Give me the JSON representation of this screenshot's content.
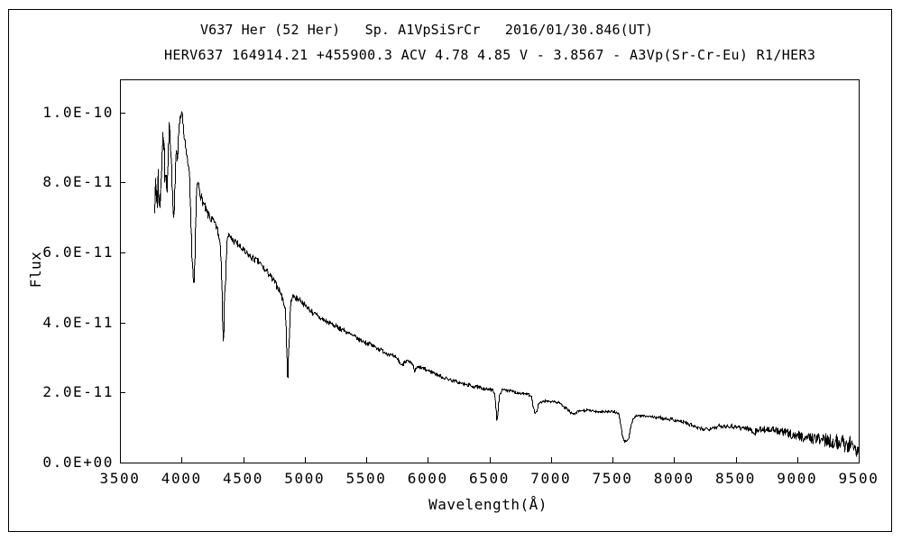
{
  "frame": {
    "background": "#ffffff",
    "border_color": "#000000",
    "line_color": "#000000"
  },
  "chart_data": {
    "type": "line",
    "title_line1": "V637 Her (52 Her)   Sp. A1VpSiSrCr   2016/01/30.846(UT)",
    "title_line2": "HERV637 164914.21 +455900.3 ACV 4.78 4.85 V - 3.8567 - A3Vp(Sr-Cr-Eu) R1/HER3",
    "xlabel": "Wavelength(Å)",
    "ylabel": "Flux",
    "xlim": [
      3500,
      9500
    ],
    "x_ticks": [
      3500,
      4000,
      4500,
      5000,
      5500,
      6000,
      6500,
      7000,
      7500,
      8000,
      8500,
      9000,
      9500
    ],
    "x_tick_labels": [
      "3500",
      "4000",
      "4500",
      "5000",
      "5500",
      "6000",
      "6500",
      "7000",
      "7500",
      "8000",
      "8500",
      "9000",
      "9500"
    ],
    "ylim_1e11": [
      0,
      10.95
    ],
    "flux_unit_scale": 1e-11,
    "y_ticks_1e11": [
      0,
      2,
      4,
      6,
      8,
      10
    ],
    "y_tick_labels": [
      "0.0E+00",
      "2.0E-11",
      "4.0E-11",
      "6.0E-11",
      "8.0E-11",
      "1.0E-10"
    ],
    "grid": false,
    "legend": false,
    "line_color": "#000000",
    "series": [
      {
        "name": "spectrum",
        "x_unit": "angstrom",
        "y_unit": "1e-11",
        "points": [
          [
            3782,
            7.3
          ],
          [
            3786,
            8.3
          ],
          [
            3789,
            7.1
          ],
          [
            3793,
            7.9
          ],
          [
            3797,
            7.2
          ],
          [
            3802,
            7.6
          ],
          [
            3807,
            8.6
          ],
          [
            3811,
            7.5
          ],
          [
            3816,
            7.2
          ],
          [
            3821,
            7.9
          ],
          [
            3826,
            7.4
          ],
          [
            3832,
            8.2
          ],
          [
            3838,
            8.9
          ],
          [
            3843,
            9.3
          ],
          [
            3847,
            9.6
          ],
          [
            3851,
            8.7
          ],
          [
            3855,
            9.5
          ],
          [
            3860,
            8.3
          ],
          [
            3864,
            7.9
          ],
          [
            3869,
            8.4
          ],
          [
            3874,
            8.0
          ],
          [
            3879,
            7.8
          ],
          [
            3885,
            8.5
          ],
          [
            3892,
            9.2
          ],
          [
            3898,
            9.6
          ],
          [
            3903,
            9.4
          ],
          [
            3908,
            9.0
          ],
          [
            3913,
            8.4
          ],
          [
            3919,
            7.8
          ],
          [
            3925,
            7.4
          ],
          [
            3931,
            7.1
          ],
          [
            3937,
            7.2
          ],
          [
            3943,
            7.9
          ],
          [
            3950,
            8.6
          ],
          [
            3956,
            9.0
          ],
          [
            3961,
            8.6
          ],
          [
            3966,
            8.9
          ],
          [
            3972,
            9.3
          ],
          [
            3978,
            9.6
          ],
          [
            3984,
            9.9
          ],
          [
            3990,
            10.05
          ],
          [
            3996,
            9.9
          ],
          [
            4002,
            10.0
          ],
          [
            4008,
            9.7
          ],
          [
            4014,
            9.5
          ],
          [
            4022,
            9.2
          ],
          [
            4030,
            9.0
          ],
          [
            4040,
            8.7
          ],
          [
            4050,
            8.5
          ],
          [
            4058,
            8.3
          ],
          [
            4066,
            7.6
          ],
          [
            4074,
            6.7
          ],
          [
            4082,
            5.9
          ],
          [
            4090,
            5.3
          ],
          [
            4097,
            5.15
          ],
          [
            4104,
            5.6
          ],
          [
            4110,
            6.5
          ],
          [
            4116,
            7.3
          ],
          [
            4122,
            7.9
          ],
          [
            4128,
            8.0
          ],
          [
            4136,
            7.9
          ],
          [
            4145,
            7.75
          ],
          [
            4155,
            7.6
          ],
          [
            4168,
            7.5
          ],
          [
            4180,
            7.35
          ],
          [
            4195,
            7.2
          ],
          [
            4210,
            7.1
          ],
          [
            4225,
            7.0
          ],
          [
            4240,
            6.95
          ],
          [
            4255,
            6.9
          ],
          [
            4270,
            6.8
          ],
          [
            4285,
            6.7
          ],
          [
            4300,
            6.5
          ],
          [
            4312,
            6.2
          ],
          [
            4322,
            5.4
          ],
          [
            4330,
            4.3
          ],
          [
            4336,
            3.45
          ],
          [
            4342,
            3.9
          ],
          [
            4350,
            4.9
          ],
          [
            4358,
            5.8
          ],
          [
            4366,
            6.3
          ],
          [
            4374,
            6.5
          ],
          [
            4382,
            6.5
          ],
          [
            4392,
            6.45
          ],
          [
            4405,
            6.4
          ],
          [
            4420,
            6.35
          ],
          [
            4435,
            6.3
          ],
          [
            4455,
            6.25
          ],
          [
            4475,
            6.15
          ],
          [
            4495,
            6.1
          ],
          [
            4515,
            6.0
          ],
          [
            4535,
            5.95
          ],
          [
            4555,
            5.9
          ],
          [
            4575,
            5.85
          ],
          [
            4595,
            5.8
          ],
          [
            4615,
            5.75
          ],
          [
            4635,
            5.7
          ],
          [
            4655,
            5.6
          ],
          [
            4675,
            5.5
          ],
          [
            4695,
            5.45
          ],
          [
            4715,
            5.35
          ],
          [
            4735,
            5.25
          ],
          [
            4755,
            5.15
          ],
          [
            4775,
            5.05
          ],
          [
            4795,
            4.9
          ],
          [
            4812,
            4.75
          ],
          [
            4827,
            4.6
          ],
          [
            4839,
            4.35
          ],
          [
            4848,
            3.7
          ],
          [
            4855,
            2.8
          ],
          [
            4860,
            2.25
          ],
          [
            4866,
            2.9
          ],
          [
            4873,
            3.9
          ],
          [
            4881,
            4.5
          ],
          [
            4890,
            4.7
          ],
          [
            4905,
            4.75
          ],
          [
            4925,
            4.72
          ],
          [
            4950,
            4.68
          ],
          [
            4975,
            4.6
          ],
          [
            5000,
            4.5
          ],
          [
            5030,
            4.42
          ],
          [
            5060,
            4.3
          ],
          [
            5090,
            4.22
          ],
          [
            5120,
            4.15
          ],
          [
            5150,
            4.08
          ],
          [
            5180,
            4.02
          ],
          [
            5210,
            3.98
          ],
          [
            5240,
            3.92
          ],
          [
            5270,
            3.87
          ],
          [
            5300,
            3.82
          ],
          [
            5335,
            3.75
          ],
          [
            5370,
            3.67
          ],
          [
            5405,
            3.6
          ],
          [
            5440,
            3.53
          ],
          [
            5475,
            3.47
          ],
          [
            5510,
            3.42
          ],
          [
            5545,
            3.36
          ],
          [
            5580,
            3.3
          ],
          [
            5615,
            3.24
          ],
          [
            5650,
            3.17
          ],
          [
            5685,
            3.1
          ],
          [
            5720,
            3.03
          ],
          [
            5750,
            2.98
          ],
          [
            5775,
            2.85
          ],
          [
            5790,
            2.78
          ],
          [
            5808,
            2.92
          ],
          [
            5830,
            2.9
          ],
          [
            5855,
            2.85
          ],
          [
            5875,
            2.78
          ],
          [
            5892,
            2.62
          ],
          [
            5908,
            2.72
          ],
          [
            5930,
            2.73
          ],
          [
            5955,
            2.7
          ],
          [
            5985,
            2.66
          ],
          [
            6015,
            2.62
          ],
          [
            6045,
            2.57
          ],
          [
            6075,
            2.52
          ],
          [
            6105,
            2.47
          ],
          [
            6135,
            2.43
          ],
          [
            6165,
            2.4
          ],
          [
            6195,
            2.36
          ],
          [
            6225,
            2.32
          ],
          [
            6255,
            2.29
          ],
          [
            6285,
            2.26
          ],
          [
            6315,
            2.23
          ],
          [
            6345,
            2.21
          ],
          [
            6375,
            2.18
          ],
          [
            6405,
            2.16
          ],
          [
            6435,
            2.14
          ],
          [
            6465,
            2.12
          ],
          [
            6495,
            2.1
          ],
          [
            6520,
            2.08
          ],
          [
            6540,
            2.0
          ],
          [
            6552,
            1.55
          ],
          [
            6559,
            1.2
          ],
          [
            6567,
            1.55
          ],
          [
            6577,
            1.9
          ],
          [
            6592,
            2.05
          ],
          [
            6612,
            2.1
          ],
          [
            6642,
            2.08
          ],
          [
            6672,
            2.06
          ],
          [
            6702,
            2.03
          ],
          [
            6732,
            2.01
          ],
          [
            6762,
            2.0
          ],
          [
            6792,
            1.98
          ],
          [
            6817,
            1.95
          ],
          [
            6837,
            1.88
          ],
          [
            6853,
            1.62
          ],
          [
            6866,
            1.42
          ],
          [
            6880,
            1.47
          ],
          [
            6894,
            1.63
          ],
          [
            6910,
            1.73
          ],
          [
            6928,
            1.76
          ],
          [
            6955,
            1.77
          ],
          [
            6985,
            1.77
          ],
          [
            7015,
            1.76
          ],
          [
            7045,
            1.74
          ],
          [
            7075,
            1.7
          ],
          [
            7105,
            1.62
          ],
          [
            7135,
            1.52
          ],
          [
            7158,
            1.43
          ],
          [
            7180,
            1.38
          ],
          [
            7203,
            1.43
          ],
          [
            7228,
            1.48
          ],
          [
            7258,
            1.5
          ],
          [
            7290,
            1.5
          ],
          [
            7322,
            1.49
          ],
          [
            7355,
            1.48
          ],
          [
            7390,
            1.47
          ],
          [
            7425,
            1.47
          ],
          [
            7460,
            1.46
          ],
          [
            7495,
            1.46
          ],
          [
            7525,
            1.46
          ],
          [
            7548,
            1.42
          ],
          [
            7563,
            1.12
          ],
          [
            7576,
            0.76
          ],
          [
            7589,
            0.65
          ],
          [
            7601,
            0.62
          ],
          [
            7613,
            0.63
          ],
          [
            7625,
            0.68
          ],
          [
            7637,
            0.86
          ],
          [
            7649,
            1.08
          ],
          [
            7661,
            1.24
          ],
          [
            7674,
            1.31
          ],
          [
            7692,
            1.34
          ],
          [
            7718,
            1.35
          ],
          [
            7748,
            1.34
          ],
          [
            7778,
            1.33
          ],
          [
            7808,
            1.32
          ],
          [
            7838,
            1.31
          ],
          [
            7868,
            1.3
          ],
          [
            7898,
            1.29
          ],
          [
            7928,
            1.27
          ],
          [
            7958,
            1.26
          ],
          [
            7988,
            1.24
          ],
          [
            8018,
            1.22
          ],
          [
            8048,
            1.19
          ],
          [
            8078,
            1.16
          ],
          [
            8108,
            1.12
          ],
          [
            8138,
            1.08
          ],
          [
            8168,
            1.03
          ],
          [
            8198,
            0.98
          ],
          [
            8228,
            0.96
          ],
          [
            8258,
            0.98
          ],
          [
            8288,
            1.0
          ],
          [
            8318,
            1.02
          ],
          [
            8348,
            1.04
          ],
          [
            8378,
            1.05
          ],
          [
            8408,
            1.06
          ],
          [
            8438,
            1.06
          ],
          [
            8468,
            1.05
          ],
          [
            8498,
            1.04
          ],
          [
            8528,
            1.02
          ],
          [
            8558,
            1.0
          ],
          [
            8588,
            0.99
          ],
          [
            8618,
            0.95
          ],
          [
            8645,
            0.88
          ],
          [
            8672,
            0.93
          ],
          [
            8702,
            0.96
          ],
          [
            8732,
            0.97
          ],
          [
            8762,
            0.96
          ],
          [
            8792,
            0.95
          ],
          [
            8822,
            0.92
          ],
          [
            8852,
            0.9
          ],
          [
            8882,
            0.87
          ],
          [
            8912,
            0.85
          ],
          [
            8942,
            0.82
          ],
          [
            8972,
            0.8
          ],
          [
            9002,
            0.78
          ],
          [
            9037,
            0.76
          ],
          [
            9072,
            0.74
          ],
          [
            9107,
            0.72
          ],
          [
            9142,
            0.7
          ],
          [
            9177,
            0.68
          ],
          [
            9212,
            0.66
          ],
          [
            9247,
            0.64
          ],
          [
            9282,
            0.62
          ],
          [
            9317,
            0.6
          ],
          [
            9352,
            0.58
          ],
          [
            9387,
            0.55
          ],
          [
            9422,
            0.52
          ],
          [
            9457,
            0.48
          ],
          [
            9492,
            0.42
          ],
          [
            9500,
            0.38
          ]
        ]
      }
    ],
    "noise_amplitude_1e11": [
      [
        3782,
        0.18
      ],
      [
        4000,
        0.15
      ],
      [
        4350,
        0.12
      ],
      [
        4900,
        0.09
      ],
      [
        5400,
        0.07
      ],
      [
        6000,
        0.055
      ],
      [
        6600,
        0.045
      ],
      [
        7200,
        0.04
      ],
      [
        7700,
        0.035
      ],
      [
        8100,
        0.05
      ],
      [
        8450,
        0.07
      ],
      [
        8750,
        0.1
      ],
      [
        9000,
        0.14
      ],
      [
        9250,
        0.2
      ],
      [
        9500,
        0.28
      ]
    ]
  }
}
